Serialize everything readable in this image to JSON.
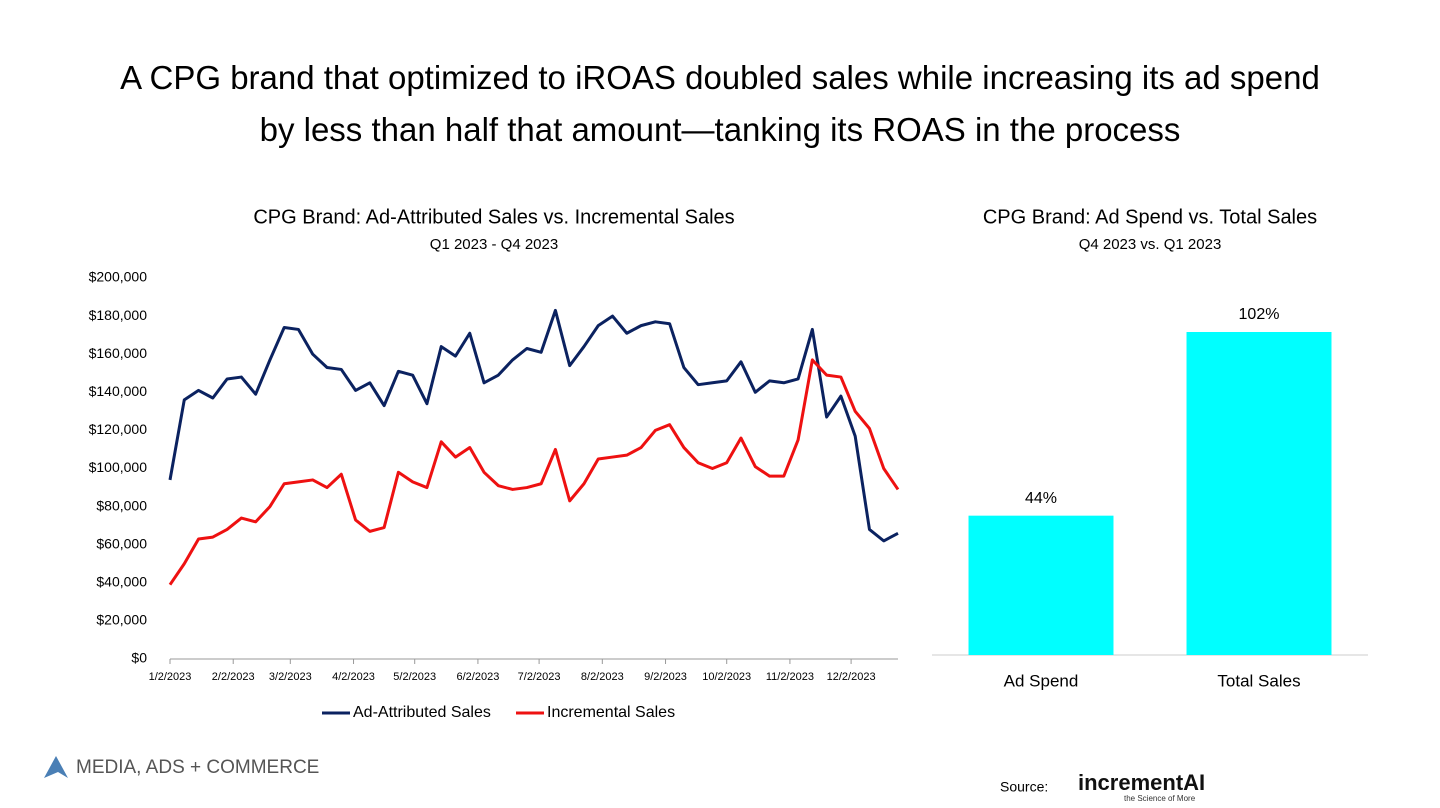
{
  "header": {
    "title": "A CPG brand that optimized to iROAS doubled sales while increasing its ad spend by less than half that amount—tanking its ROAS in the process"
  },
  "chart_data": [
    {
      "type": "line",
      "title": "CPG Brand: Ad-Attributed Sales vs. Incremental Sales",
      "subtitle": "Q1 2023 - Q4 2023",
      "x": [
        "1/2/2023",
        "1/9/2023",
        "1/16/2023",
        "1/23/2023",
        "1/30/2023",
        "2/6/2023",
        "2/13/2023",
        "2/20/2023",
        "2/27/2023",
        "3/6/2023",
        "3/13/2023",
        "3/20/2023",
        "3/27/2023",
        "4/3/2023",
        "4/10/2023",
        "4/17/2023",
        "4/24/2023",
        "5/1/2023",
        "5/8/2023",
        "5/15/2023",
        "5/22/2023",
        "5/29/2023",
        "6/5/2023",
        "6/12/2023",
        "6/19/2023",
        "6/26/2023",
        "7/3/2023",
        "7/10/2023",
        "7/17/2023",
        "7/24/2023",
        "7/31/2023",
        "8/7/2023",
        "8/14/2023",
        "8/21/2023",
        "8/28/2023",
        "9/4/2023",
        "9/11/2023",
        "9/18/2023",
        "9/25/2023",
        "10/2/2023",
        "10/9/2023",
        "10/16/2023",
        "10/23/2023",
        "10/30/2023",
        "11/6/2023",
        "11/13/2023",
        "11/20/2023",
        "11/27/2023",
        "12/4/2023",
        "12/11/2023",
        "12/18/2023",
        "12/25/2023"
      ],
      "xlim": [
        "1/2/2023",
        "12/25/2023"
      ],
      "xticks": [
        "1/2/2023",
        "2/2/2023",
        "3/2/2023",
        "4/2/2023",
        "5/2/2023",
        "6/2/2023",
        "7/2/2023",
        "8/2/2023",
        "9/2/2023",
        "10/2/2023",
        "11/2/2023",
        "12/2/2023"
      ],
      "ylim": [
        0,
        200000
      ],
      "yticks": [
        {
          "value": 0,
          "label": "$0"
        },
        {
          "value": 20000,
          "label": "$20,000"
        },
        {
          "value": 40000,
          "label": "$40,000"
        },
        {
          "value": 60000,
          "label": "$60,000"
        },
        {
          "value": 80000,
          "label": "$80,000"
        },
        {
          "value": 100000,
          "label": "$100,000"
        },
        {
          "value": 120000,
          "label": "$120,000"
        },
        {
          "value": 140000,
          "label": "$140,000"
        },
        {
          "value": 160000,
          "label": "$160,000"
        },
        {
          "value": 180000,
          "label": "$180,000"
        },
        {
          "value": 200000,
          "label": "$200,000"
        }
      ],
      "grid": false,
      "legend": "bottom",
      "series": [
        {
          "name": "Ad-Attributed Sales",
          "color": "#0b2260",
          "values": [
            94000,
            136000,
            141000,
            137000,
            147000,
            148000,
            139000,
            157000,
            174000,
            173000,
            160000,
            153000,
            152000,
            141000,
            145000,
            133000,
            151000,
            149000,
            134000,
            164000,
            159000,
            171000,
            145000,
            149000,
            157000,
            163000,
            161000,
            183000,
            154000,
            164000,
            175000,
            180000,
            171000,
            175000,
            177000,
            176000,
            153000,
            144000,
            145000,
            146000,
            156000,
            140000,
            146000,
            145000,
            147000,
            173000,
            127000,
            138000,
            117000,
            68000,
            62000,
            66000
          ]
        },
        {
          "name": "Incremental Sales",
          "color": "#ee1111",
          "values": [
            39000,
            50000,
            63000,
            64000,
            68000,
            74000,
            72000,
            80000,
            92000,
            93000,
            94000,
            90000,
            97000,
            73000,
            67000,
            69000,
            98000,
            93000,
            90000,
            114000,
            106000,
            111000,
            98000,
            91000,
            89000,
            90000,
            92000,
            110000,
            83000,
            92000,
            105000,
            106000,
            107000,
            111000,
            120000,
            123000,
            111000,
            103000,
            100000,
            103000,
            116000,
            101000,
            96000,
            96000,
            115000,
            157000,
            149000,
            148000,
            130000,
            121000,
            100000,
            89000
          ]
        }
      ]
    },
    {
      "type": "bar",
      "title": "CPG Brand: Ad Spend vs. Total Sales",
      "subtitle": "Q4 2023 vs. Q1 2023",
      "categories": [
        "Ad Spend",
        "Total Sales"
      ],
      "values": [
        44,
        102
      ],
      "value_labels": [
        "44%",
        "102%"
      ],
      "color": "#00ffff"
    }
  ],
  "footer": {
    "brand": "MEDIA, ADS + COMMERCE",
    "source_label": "Source:",
    "logo": "incrementAI",
    "logo_tagline": "the Science of More"
  }
}
